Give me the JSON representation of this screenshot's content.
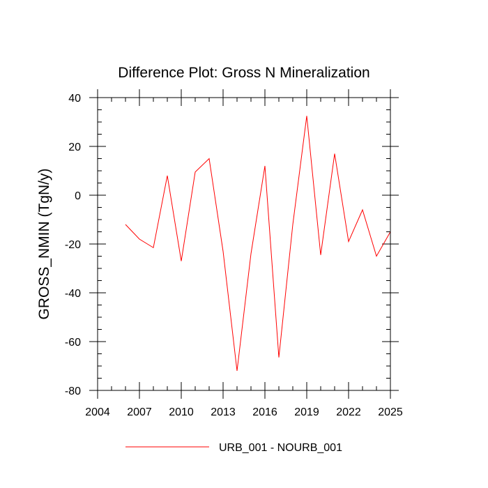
{
  "chart_data": {
    "type": "line",
    "title": "Difference Plot: Gross N Mineralization",
    "xlabel": "",
    "ylabel": "GROSS_NMIN  (TgN/y)",
    "xlim": [
      2004,
      2025
    ],
    "ylim": [
      -80,
      40
    ],
    "xticks": [
      2004,
      2007,
      2010,
      2013,
      2016,
      2019,
      2022,
      2025
    ],
    "yticks": [
      40,
      20,
      0,
      -20,
      -40,
      -60,
      -80
    ],
    "x_minor_step": 1,
    "y_minor_step": 5,
    "legend_position": "bottom",
    "grid": false,
    "series": [
      {
        "name": "URB_001 - NOURB_001",
        "color": "#ff0000",
        "x": [
          2006,
          2007,
          2008,
          2009,
          2010,
          2011,
          2012,
          2013,
          2014,
          2015,
          2016,
          2017,
          2018,
          2019,
          2020,
          2021,
          2022,
          2023,
          2024,
          2025
        ],
        "y": [
          -12,
          -18,
          -21.5,
          8,
          -27,
          9.5,
          15,
          -23,
          -72,
          -24,
          12,
          -66.5,
          -12,
          32.5,
          -24.5,
          17,
          -19,
          -6,
          -25,
          -15
        ]
      }
    ]
  }
}
